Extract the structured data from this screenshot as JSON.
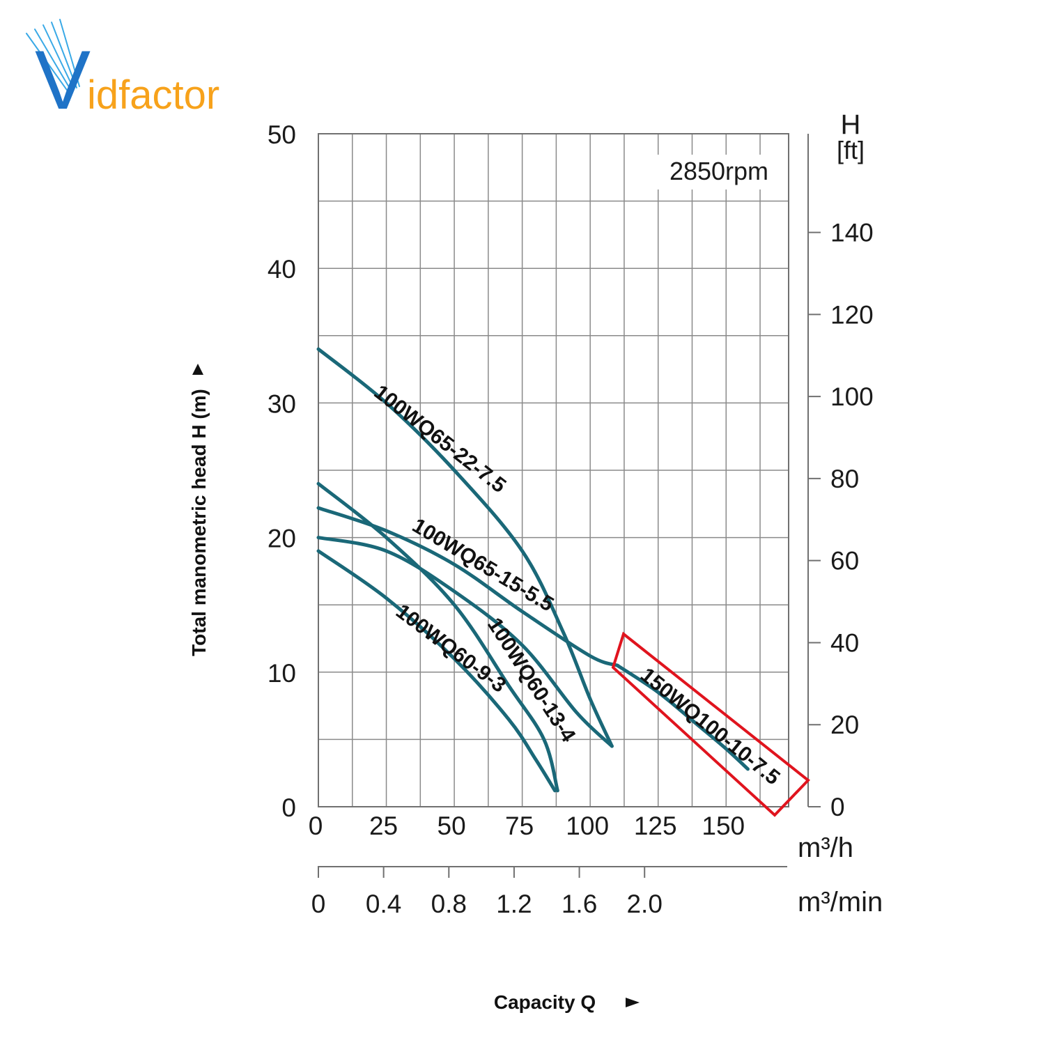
{
  "brand": {
    "name": "Vidfactor",
    "logo_initial": "V",
    "logo_rest": "idfactor"
  },
  "colors": {
    "curve": "#1a6878",
    "highlight": "#e0141e",
    "grid": "#8a8a8a",
    "logo_blue": "#1f73c7",
    "logo_orange": "#f7a21b"
  },
  "chart_data": {
    "type": "line",
    "annotation": "2850rpm",
    "ylabel": "Total manometric head H (m)",
    "xlabel": "Capacity Q",
    "y_ticks": [
      0,
      10,
      20,
      30,
      40,
      50
    ],
    "ylim": [
      0,
      50
    ],
    "y2_title": [
      "H",
      "[ft]"
    ],
    "y2_ticks": [
      0,
      20,
      40,
      60,
      80,
      100,
      120,
      140
    ],
    "x_ticks": [
      0,
      25,
      50,
      75,
      100,
      125,
      150
    ],
    "x_unit": "m³/h",
    "x2_ticks": [
      "0",
      "0.4",
      "0.8",
      "1.2",
      "1.6",
      "2.0"
    ],
    "x2_unit": "m³/min",
    "xlim": [
      0,
      173
    ],
    "highlighted_series": "150WQ100-10-7.5",
    "series": [
      {
        "name": "100WQ65-22-7.5",
        "points": [
          [
            0,
            34
          ],
          [
            25,
            30
          ],
          [
            50,
            25
          ],
          [
            75,
            19
          ],
          [
            90,
            13
          ],
          [
            100,
            8
          ],
          [
            108,
            4.5
          ]
        ]
      },
      {
        "name": "100WQ65-15-5.5",
        "points": [
          [
            0,
            22.2
          ],
          [
            25,
            20.5
          ],
          [
            50,
            18
          ],
          [
            75,
            14.5
          ],
          [
            100,
            11.2
          ],
          [
            110,
            10.5
          ]
        ]
      },
      {
        "name": "150WQ100-10-7.5",
        "points": [
          [
            110,
            10.5
          ],
          [
            125,
            8.5
          ],
          [
            140,
            6
          ],
          [
            150,
            4.3
          ],
          [
            158,
            2.8
          ]
        ]
      },
      {
        "name": "100WQ60-13-4",
        "points": [
          [
            0,
            20
          ],
          [
            25,
            19
          ],
          [
            50,
            16
          ],
          [
            75,
            12
          ],
          [
            95,
            7
          ],
          [
            108,
            4.5
          ]
        ]
      },
      {
        "name": "100WQ60-9-3",
        "points": [
          [
            0,
            19
          ],
          [
            25,
            15.5
          ],
          [
            50,
            11
          ],
          [
            70,
            6.5
          ],
          [
            80,
            3.5
          ],
          [
            87,
            1.2
          ]
        ]
      },
      {
        "name": "",
        "points": [
          [
            0,
            24
          ],
          [
            25,
            20
          ],
          [
            50,
            15
          ],
          [
            70,
            9
          ],
          [
            83,
            5
          ],
          [
            88,
            1.2
          ]
        ]
      }
    ]
  }
}
